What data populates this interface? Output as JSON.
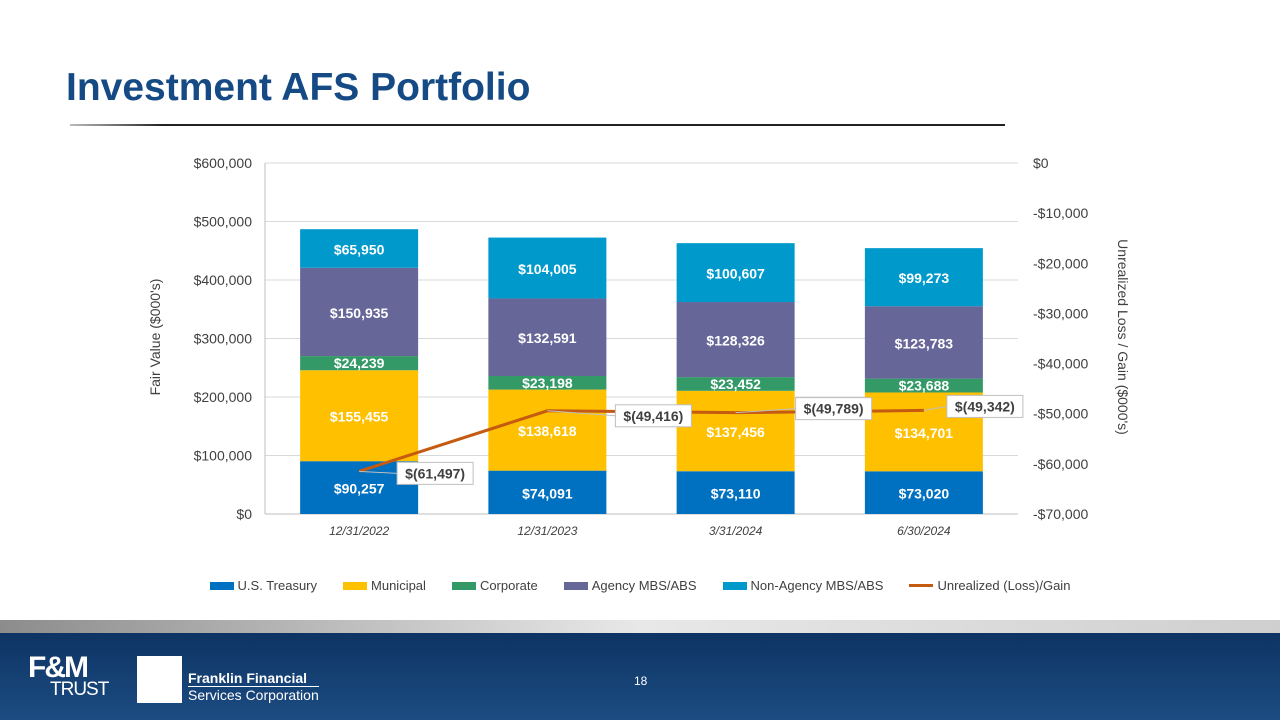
{
  "title": "Investment AFS Portfolio",
  "page_number": "18",
  "footer": {
    "logo1": "F&M TRUST",
    "logo2_line1": "Franklin Financial",
    "logo2_line2": "Services Corporation"
  },
  "chart_data": {
    "type": "bar",
    "stacked": true,
    "title": "",
    "categories": [
      "12/31/2022",
      "12/31/2023",
      "3/31/2024",
      "6/30/2024"
    ],
    "ylabel": "Fair Value ($000's)",
    "ylabel_right": "Unrealized Loss / Gain ($000's)",
    "ylim": [
      0,
      600000
    ],
    "ylim_right": [
      -70000,
      0
    ],
    "yticks": [
      "$0",
      "$100,000",
      "$200,000",
      "$300,000",
      "$400,000",
      "$500,000",
      "$600,000"
    ],
    "yticks_right": [
      "-$70,000",
      "-$60,000",
      "-$50,000",
      "-$40,000",
      "-$30,000",
      "-$20,000",
      "-$10,000",
      "$0"
    ],
    "grid": true,
    "legend_position": "bottom",
    "series": [
      {
        "name": "U.S. Treasury",
        "color": "#0070c0",
        "values": [
          90257,
          74091,
          73110,
          73020
        ],
        "labels": [
          "$90,257",
          "$74,091",
          "$73,110",
          "$73,020"
        ]
      },
      {
        "name": "Municipal",
        "color": "#ffc000",
        "values": [
          155455,
          138618,
          137456,
          134701
        ],
        "labels": [
          "$155,455",
          "$138,618",
          "$137,456",
          "$134,701"
        ]
      },
      {
        "name": "Corporate",
        "color": "#339966",
        "values": [
          24239,
          23198,
          23452,
          23688
        ],
        "labels": [
          "$24,239",
          "$23,198",
          "$23,452",
          "$23,688"
        ]
      },
      {
        "name": "Agency MBS/ABS",
        "color": "#666699",
        "values": [
          150935,
          132591,
          128326,
          123783
        ],
        "labels": [
          "$150,935",
          "$132,591",
          "$128,326",
          "$123,783"
        ]
      },
      {
        "name": "Non-Agency MBS/ABS",
        "color": "#0099cc",
        "values": [
          65950,
          104005,
          100607,
          99273
        ],
        "labels": [
          "$65,950",
          "$104,005",
          "$100,607",
          "$99,273"
        ]
      }
    ],
    "line_series": {
      "name": "Unrealized (Loss)/Gain",
      "color": "#c55a11",
      "axis": "right",
      "values": [
        -61497,
        -49416,
        -49789,
        -49342
      ],
      "labels": [
        "$(61,497)",
        "$(49,416)",
        "$(49,789)",
        "$(49,342)"
      ]
    }
  }
}
